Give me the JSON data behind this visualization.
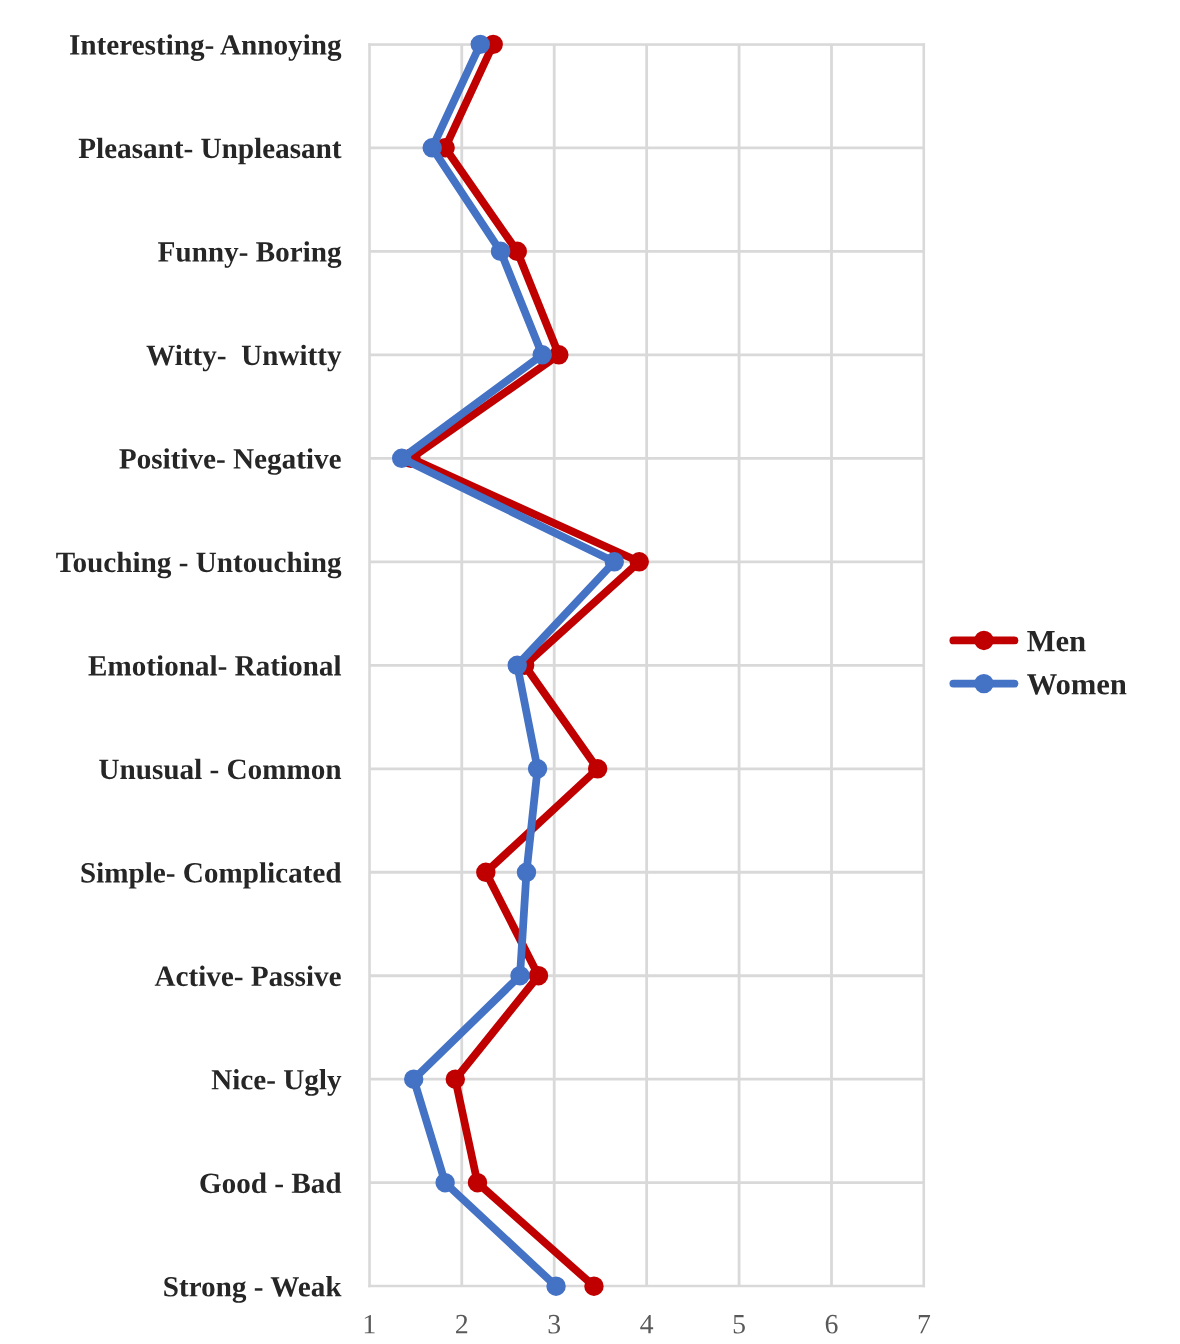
{
  "chart_data": {
    "type": "line",
    "orientation": "horizontal",
    "categories": [
      "Interesting- Annoying",
      "Pleasant- Unpleasant",
      "Funny- Boring",
      "Witty-  Unwitty",
      "Positive- Negative",
      "Touching - Untouching",
      "Emotional- Rational",
      "Unusual - Common",
      "Simple- Complicated",
      "Active- Passive",
      "Nice- Ugly",
      "Good - Bad",
      "Strong - Weak"
    ],
    "series": [
      {
        "name": "Men",
        "color": "#c00000",
        "values": [
          2.34,
          1.82,
          2.6,
          3.05,
          1.45,
          3.92,
          2.68,
          3.47,
          2.26,
          2.83,
          1.93,
          2.17,
          3.43
        ]
      },
      {
        "name": "Women",
        "color": "#4472c4",
        "values": [
          2.2,
          1.68,
          2.42,
          2.87,
          1.35,
          3.65,
          2.6,
          2.82,
          2.7,
          2.63,
          1.48,
          1.82,
          3.02
        ]
      }
    ],
    "xlim": [
      1,
      7
    ],
    "xticks": [
      1,
      2,
      3,
      4,
      5,
      6,
      7
    ],
    "grid": true,
    "legend": "right",
    "marker": "circle",
    "line_style": "solid"
  }
}
